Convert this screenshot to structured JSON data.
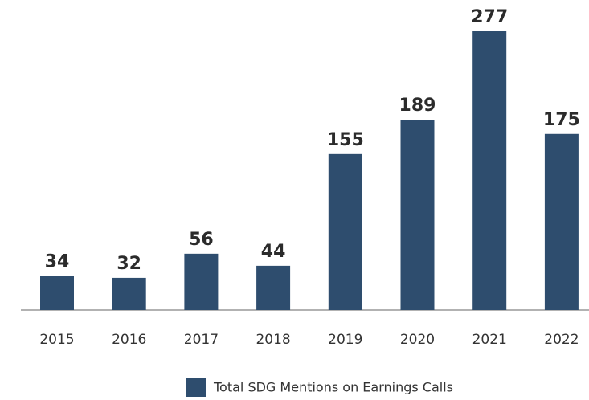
{
  "chart_data": {
    "type": "bar",
    "categories": [
      "2015",
      "2016",
      "2017",
      "2018",
      "2019",
      "2020",
      "2021",
      "2022"
    ],
    "series": [
      {
        "name": "Total SDG Mentions on Earnings Calls",
        "color": "#2e4d6e",
        "values": [
          34,
          32,
          56,
          44,
          155,
          189,
          277,
          175
        ]
      }
    ],
    "legend": "bottom"
  }
}
